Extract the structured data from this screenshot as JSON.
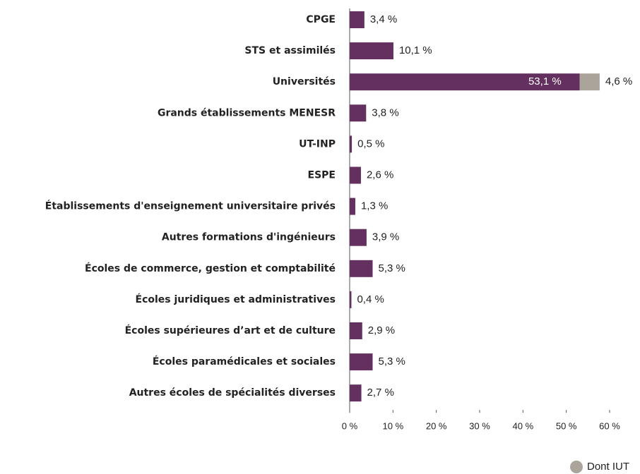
{
  "chart_data": {
    "type": "hbar_stacked",
    "categories": [
      "CPGE",
      "STS et assimilés",
      "Universités",
      "Grands établissements MENESR",
      "UT-INP",
      "ESPE",
      "Établissements d'enseignement universitaire privés",
      "Autres formations d'ingénieurs",
      "Écoles de commerce, gestion et comptabilité",
      "Écoles juridiques et administratives",
      "Écoles supérieures d’art et de culture",
      "Écoles paramédicales et sociales",
      "Autres écoles de spécialités diverses"
    ],
    "series": [
      {
        "color": "#64305f",
        "values": [
          3.4,
          10.1,
          53.1,
          3.8,
          0.5,
          2.6,
          1.3,
          3.9,
          5.3,
          0.4,
          2.9,
          5.3,
          2.7
        ],
        "value_labels": [
          "3,4 %",
          "10,1 %",
          "53,1 %",
          "3,8 %",
          "0,5 %",
          "2,6 %",
          "1,3 %",
          "3,9 %",
          "5,3 %",
          "0,4 %",
          "2,9 %",
          "5,3 %",
          "2,7 %"
        ]
      },
      {
        "name": "Dont IUT",
        "color": "#aaa49a",
        "values": [
          null,
          null,
          4.6,
          null,
          null,
          null,
          null,
          null,
          null,
          null,
          null,
          null,
          null
        ],
        "value_labels": [
          null,
          null,
          "4,6 %",
          null,
          null,
          null,
          null,
          null,
          null,
          null,
          null,
          null,
          null
        ]
      }
    ],
    "xlim": [
      0,
      60
    ],
    "xticks": [
      {
        "value": 0,
        "label": "0 %"
      },
      {
        "value": 10,
        "label": "10 %"
      },
      {
        "value": 20,
        "label": "20 %"
      },
      {
        "value": 30,
        "label": "30 %"
      },
      {
        "value": 40,
        "label": "40 %"
      },
      {
        "value": 50,
        "label": "50 %"
      },
      {
        "value": 60,
        "label": "60 %"
      }
    ]
  }
}
